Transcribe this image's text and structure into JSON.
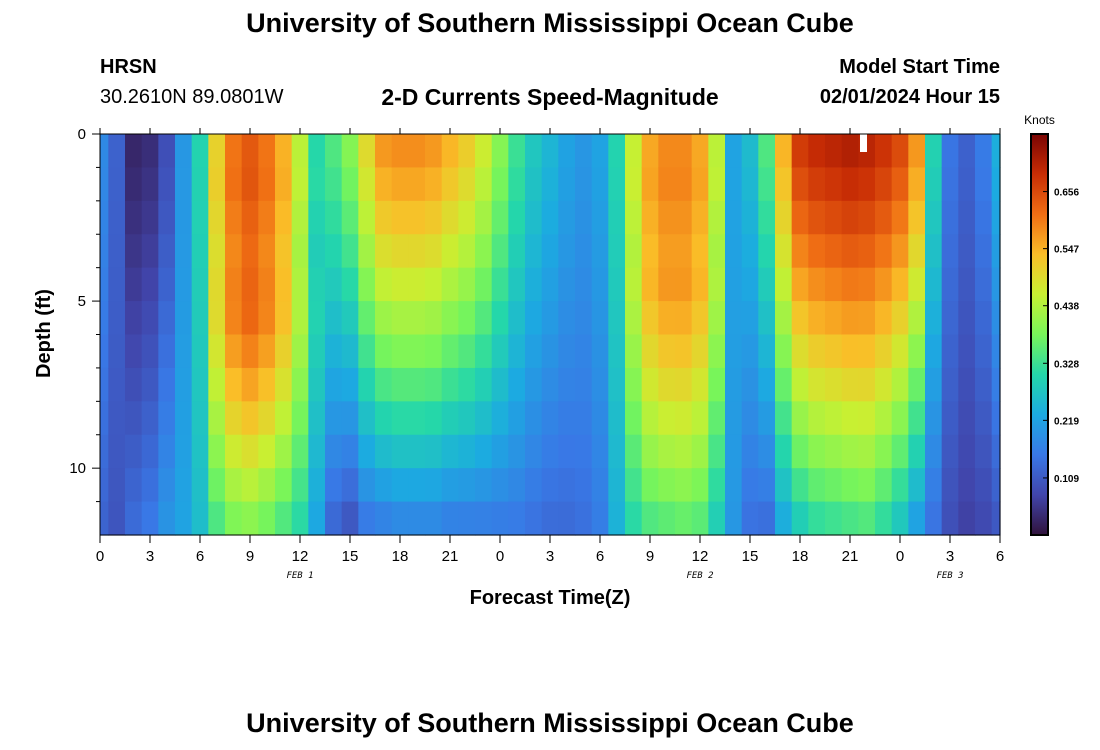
{
  "header": {
    "title": "University of Southern Mississippi Ocean Cube",
    "station": "HRSN",
    "coords": "30.2610N  89.0801W",
    "plot_title": "2-D Currents Speed-Magnitude",
    "model_label": "Model Start Time",
    "model_time": "02/01/2024 Hour 15"
  },
  "footer": {
    "title": "University of Southern Mississippi Ocean Cube"
  },
  "chart_data": {
    "type": "heatmap",
    "title": "2-D Currents Speed-Magnitude",
    "xlabel": "Forecast Time(Z)",
    "ylabel": "Depth (ft)",
    "x_tick_labels": [
      "0",
      "3",
      "6",
      "9",
      "12",
      "15",
      "18",
      "21",
      "0",
      "3",
      "6",
      "9",
      "12",
      "15",
      "18",
      "21",
      "0",
      "3",
      "6"
    ],
    "x_range_hours": [
      0,
      54
    ],
    "day_labels": [
      {
        "label": "FEB 1",
        "hour": 12
      },
      {
        "label": "FEB 2",
        "hour": 36
      },
      {
        "label": "FEB 3",
        "hour": 51
      }
    ],
    "y_tick_labels": [
      "0",
      "5",
      "10"
    ],
    "y_tick_values": [
      0,
      5,
      10
    ],
    "y_range_ft": [
      0,
      12
    ],
    "colorbar": {
      "label": "Knots",
      "min": 0.0,
      "max": 0.766,
      "tick_labels": [
        "0.109",
        "0.219",
        "0.328",
        "0.438",
        "0.547",
        "0.656"
      ],
      "tick_values": [
        0.109,
        0.219,
        0.328,
        0.438,
        0.547,
        0.656
      ]
    },
    "time_step_hours": 1,
    "depth_levels_ft": [
      0.5,
      1.5,
      2.5,
      3.5,
      4.5,
      5.5,
      6.5,
      7.5,
      8.5,
      9.5,
      10.5,
      11.5
    ],
    "speed_profile": [
      {
        "hour": 0,
        "surface": 0.18,
        "bottom": 0.12,
        "core_ft": 0
      },
      {
        "hour": 1,
        "surface": 0.12,
        "bottom": 0.1,
        "core_ft": 0
      },
      {
        "hour": 2,
        "surface": 0.03,
        "bottom": 0.14,
        "core_ft": 0
      },
      {
        "hour": 3,
        "surface": 0.04,
        "bottom": 0.16,
        "core_ft": 0
      },
      {
        "hour": 4,
        "surface": 0.09,
        "bottom": 0.2,
        "core_ft": 0
      },
      {
        "hour": 5,
        "surface": 0.2,
        "bottom": 0.22,
        "core_ft": 0
      },
      {
        "hour": 6,
        "surface": 0.3,
        "bottom": 0.26,
        "core_ft": 0
      },
      {
        "hour": 7,
        "surface": 0.5,
        "bottom": 0.33,
        "core_ft": 5
      },
      {
        "hour": 8,
        "surface": 0.6,
        "bottom": 0.37,
        "core_ft": 5
      },
      {
        "hour": 9,
        "surface": 0.63,
        "bottom": 0.38,
        "core_ft": 5
      },
      {
        "hour": 10,
        "surface": 0.6,
        "bottom": 0.36,
        "core_ft": 5
      },
      {
        "hour": 11,
        "surface": 0.54,
        "bottom": 0.33,
        "core_ft": 5
      },
      {
        "hour": 12,
        "surface": 0.44,
        "bottom": 0.3,
        "core_ft": 5
      },
      {
        "hour": 13,
        "surface": 0.3,
        "bottom": 0.22,
        "core_ft": 5
      },
      {
        "hour": 14,
        "surface": 0.35,
        "bottom": 0.12,
        "core_ft": 0
      },
      {
        "hour": 15,
        "surface": 0.4,
        "bottom": 0.09,
        "core_ft": 0
      },
      {
        "hour": 16,
        "surface": 0.5,
        "bottom": 0.14,
        "core_ft": 0
      },
      {
        "hour": 17,
        "surface": 0.58,
        "bottom": 0.15,
        "core_ft": 0
      },
      {
        "hour": 18,
        "surface": 0.59,
        "bottom": 0.16,
        "core_ft": 0
      },
      {
        "hour": 19,
        "surface": 0.59,
        "bottom": 0.16,
        "core_ft": 0
      },
      {
        "hour": 20,
        "surface": 0.58,
        "bottom": 0.16,
        "core_ft": 0
      },
      {
        "hour": 21,
        "surface": 0.55,
        "bottom": 0.15,
        "core_ft": 0
      },
      {
        "hour": 22,
        "surface": 0.52,
        "bottom": 0.15,
        "core_ft": 0
      },
      {
        "hour": 23,
        "surface": 0.47,
        "bottom": 0.15,
        "core_ft": 0
      },
      {
        "hour": 24,
        "surface": 0.4,
        "bottom": 0.15,
        "core_ft": 0
      },
      {
        "hour": 25,
        "surface": 0.33,
        "bottom": 0.15,
        "core_ft": 0
      },
      {
        "hour": 26,
        "surface": 0.28,
        "bottom": 0.14,
        "core_ft": 0
      },
      {
        "hour": 27,
        "surface": 0.25,
        "bottom": 0.13,
        "core_ft": 0
      },
      {
        "hour": 28,
        "surface": 0.22,
        "bottom": 0.13,
        "core_ft": 0
      },
      {
        "hour": 29,
        "surface": 0.2,
        "bottom": 0.14,
        "core_ft": 0
      },
      {
        "hour": 30,
        "surface": 0.22,
        "bottom": 0.16,
        "core_ft": 0
      },
      {
        "hour": 31,
        "surface": 0.3,
        "bottom": 0.24,
        "core_ft": 0
      },
      {
        "hour": 32,
        "surface": 0.45,
        "bottom": 0.3,
        "core_ft": 4
      },
      {
        "hour": 33,
        "surface": 0.55,
        "bottom": 0.33,
        "core_ft": 4
      },
      {
        "hour": 34,
        "surface": 0.58,
        "bottom": 0.34,
        "core_ft": 4
      },
      {
        "hour": 35,
        "surface": 0.58,
        "bottom": 0.35,
        "core_ft": 4
      },
      {
        "hour": 36,
        "surface": 0.55,
        "bottom": 0.34,
        "core_ft": 4
      },
      {
        "hour": 37,
        "surface": 0.44,
        "bottom": 0.28,
        "core_ft": 4
      },
      {
        "hour": 38,
        "surface": 0.22,
        "bottom": 0.2,
        "core_ft": 0
      },
      {
        "hour": 39,
        "surface": 0.26,
        "bottom": 0.14,
        "core_ft": 0
      },
      {
        "hour": 40,
        "surface": 0.35,
        "bottom": 0.13,
        "core_ft": 0
      },
      {
        "hour": 41,
        "surface": 0.55,
        "bottom": 0.22,
        "core_ft": 0
      },
      {
        "hour": 42,
        "surface": 0.68,
        "bottom": 0.27,
        "core_ft": 0
      },
      {
        "hour": 43,
        "surface": 0.7,
        "bottom": 0.3,
        "core_ft": 0
      },
      {
        "hour": 44,
        "surface": 0.71,
        "bottom": 0.31,
        "core_ft": 0
      },
      {
        "hour": 45,
        "surface": 0.72,
        "bottom": 0.32,
        "core_ft": 0
      },
      {
        "hour": 46,
        "surface": 0.71,
        "bottom": 0.33,
        "core_ft": 0
      },
      {
        "hour": 47,
        "surface": 0.69,
        "bottom": 0.3,
        "core_ft": 0
      },
      {
        "hour": 48,
        "surface": 0.66,
        "bottom": 0.26,
        "core_ft": 0
      },
      {
        "hour": 49,
        "surface": 0.58,
        "bottom": 0.2,
        "core_ft": 0
      },
      {
        "hour": 50,
        "surface": 0.3,
        "bottom": 0.14,
        "core_ft": 0
      },
      {
        "hour": 51,
        "surface": 0.15,
        "bottom": 0.09,
        "core_ft": 0
      },
      {
        "hour": 52,
        "surface": 0.12,
        "bottom": 0.07,
        "core_ft": 0
      },
      {
        "hour": 53,
        "surface": 0.16,
        "bottom": 0.08,
        "core_ft": 0
      },
      {
        "hour": 54,
        "surface": 0.24,
        "bottom": 0.1,
        "core_ft": 0
      }
    ]
  }
}
